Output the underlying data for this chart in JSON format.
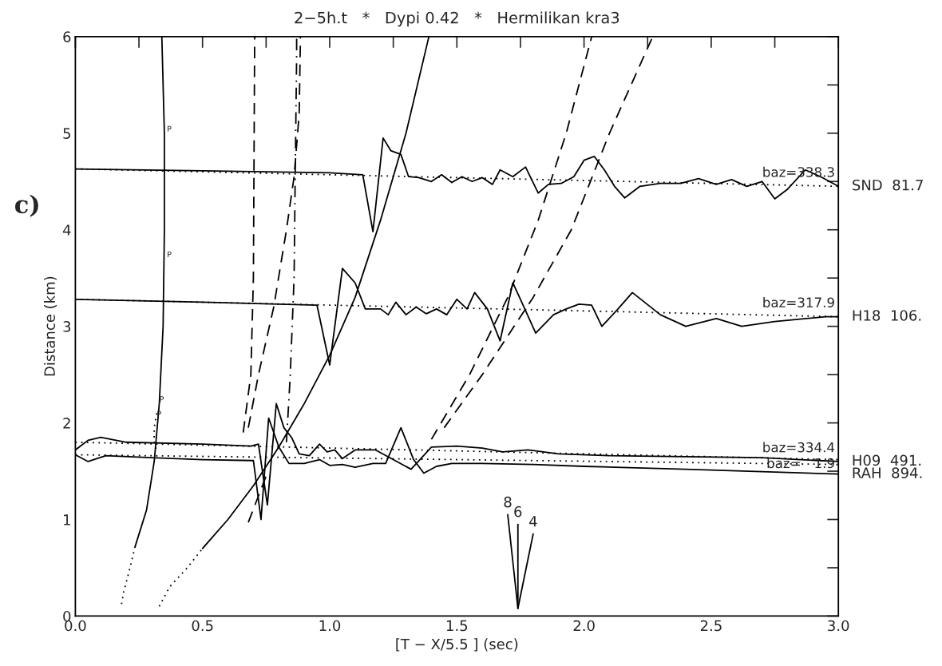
{
  "chart_data": {
    "type": "line",
    "title": "2−5h.t   *   Dypi 0.42   *   Hermilikan kra3",
    "xlabel": "[T − X/5.5 ] (sec)",
    "ylabel": "Distance (km)",
    "xlim": [
      0,
      3
    ],
    "ylim": [
      0,
      6
    ],
    "xticks": [
      {
        "value": 0,
        "label": "0.0"
      },
      {
        "value": 0.25,
        "label": null
      },
      {
        "value": 0.5,
        "label": "0.5"
      },
      {
        "value": 0.75,
        "label": null
      },
      {
        "value": 1,
        "label": "1.0"
      },
      {
        "value": 1.25,
        "label": null
      },
      {
        "value": 1.5,
        "label": "1.5"
      },
      {
        "value": 1.75,
        "label": null
      },
      {
        "value": 2,
        "label": "2.0"
      },
      {
        "value": 2.25,
        "label": null
      },
      {
        "value": 2.5,
        "label": "2.5"
      },
      {
        "value": 2.75,
        "label": null
      },
      {
        "value": 3,
        "label": "3.0"
      }
    ],
    "yticks": [
      0,
      {
        "value": 0.5,
        "label": null
      },
      1,
      {
        "value": 1.5,
        "label": null
      },
      2,
      {
        "value": 2.5,
        "label": null
      },
      3,
      {
        "value": 3.5,
        "label": null
      },
      4,
      {
        "value": 4.5,
        "label": null
      },
      5,
      {
        "value": 5.5,
        "label": null
      },
      6
    ],
    "grid": false,
    "legend": false,
    "marker": "none",
    "series": [
      {
        "name": "SND  81.7",
        "color": "#000000",
        "line_style": "solid",
        "x": [
          0,
          0.5,
          1.0,
          1.13,
          1.17,
          1.21,
          1.24,
          1.28,
          1.31,
          1.35,
          1.4,
          1.44,
          1.48,
          1.52,
          1.56,
          1.6,
          1.64,
          1.67,
          1.72,
          1.77,
          1.82,
          1.86,
          1.91,
          1.96,
          2.0,
          2.04,
          2.08,
          2.12,
          2.16,
          2.22,
          2.3,
          2.38,
          2.45,
          2.52,
          2.58,
          2.64,
          2.7,
          2.75,
          2.8,
          2.87,
          2.93,
          3.0
        ],
        "values": [
          4.63,
          4.61,
          4.59,
          4.57,
          3.98,
          4.95,
          4.82,
          4.78,
          4.55,
          4.54,
          4.5,
          4.57,
          4.49,
          4.55,
          4.5,
          4.54,
          4.47,
          4.62,
          4.55,
          4.65,
          4.38,
          4.47,
          4.48,
          4.55,
          4.72,
          4.76,
          4.62,
          4.45,
          4.33,
          4.45,
          4.48,
          4.48,
          4.53,
          4.47,
          4.52,
          4.45,
          4.5,
          4.32,
          4.42,
          4.62,
          4.55,
          4.45
        ]
      },
      {
        "name": "H18  106.",
        "color": "#000000",
        "line_style": "solid",
        "x": [
          0,
          0.5,
          0.95,
          1.0,
          1.05,
          1.1,
          1.14,
          1.2,
          1.23,
          1.26,
          1.3,
          1.34,
          1.38,
          1.42,
          1.46,
          1.5,
          1.54,
          1.57,
          1.62,
          1.67,
          1.72,
          1.75,
          1.81,
          1.88,
          1.93,
          1.98,
          2.03,
          2.07,
          2.13,
          2.19,
          2.3,
          2.4,
          2.52,
          2.62,
          2.75,
          2.95,
          3.0
        ],
        "values": [
          3.28,
          3.25,
          3.22,
          2.6,
          3.6,
          3.45,
          3.18,
          3.18,
          3.12,
          3.25,
          3.12,
          3.2,
          3.13,
          3.18,
          3.12,
          3.28,
          3.18,
          3.35,
          3.18,
          2.85,
          3.45,
          3.28,
          2.93,
          3.12,
          3.18,
          3.23,
          3.22,
          3.0,
          3.17,
          3.35,
          3.12,
          3.0,
          3.08,
          3.0,
          3.05,
          3.1,
          3.1
        ]
      },
      {
        "name": "H09  491.",
        "color": "#000000",
        "line_style": "solid",
        "x": [
          0,
          0.05,
          0.1,
          0.2,
          0.5,
          0.69,
          0.72,
          0.755,
          0.79,
          0.82,
          0.85,
          0.88,
          0.92,
          0.96,
          0.99,
          1.02,
          1.05,
          1.1,
          1.18,
          1.25,
          1.32,
          1.4,
          1.5,
          1.6,
          1.68,
          1.78,
          1.9,
          2.1,
          2.4,
          2.7,
          3.0
        ],
        "values": [
          1.72,
          1.82,
          1.85,
          1.8,
          1.78,
          1.76,
          1.78,
          1.15,
          2.2,
          1.95,
          1.85,
          1.68,
          1.66,
          1.78,
          1.7,
          1.72,
          1.63,
          1.72,
          1.72,
          1.62,
          1.52,
          1.75,
          1.76,
          1.74,
          1.7,
          1.72,
          1.68,
          1.66,
          1.65,
          1.64,
          1.6
        ]
      },
      {
        "name": "RAH  894.",
        "color": "#000000",
        "line_style": "solid",
        "x": [
          0,
          0.05,
          0.12,
          0.3,
          0.5,
          0.7,
          0.73,
          0.76,
          0.8,
          0.84,
          0.9,
          0.96,
          1.0,
          1.05,
          1.1,
          1.17,
          1.22,
          1.28,
          1.33,
          1.37,
          1.42,
          1.48,
          1.6,
          1.8,
          2.0,
          2.4,
          3.0
        ],
        "values": [
          1.67,
          1.6,
          1.66,
          1.64,
          1.62,
          1.61,
          1.0,
          2.05,
          1.75,
          1.58,
          1.58,
          1.62,
          1.56,
          1.57,
          1.54,
          1.58,
          1.58,
          1.95,
          1.62,
          1.48,
          1.55,
          1.58,
          1.58,
          1.57,
          1.55,
          1.52,
          1.47
        ]
      },
      {
        "color": "#000000",
        "line_style": "dotted",
        "x": [
          0,
          3
        ],
        "values": [
          4.63,
          4.45
        ]
      },
      {
        "color": "#000000",
        "line_style": "dotted",
        "x": [
          0,
          3
        ],
        "values": [
          3.28,
          3.1
        ]
      },
      {
        "color": "#000000",
        "line_style": "dotted",
        "x": [
          0,
          3
        ],
        "values": [
          1.8,
          1.62
        ]
      },
      {
        "color": "#000000",
        "line_style": "dotted",
        "x": [
          0,
          3
        ],
        "values": [
          1.67,
          1.57
        ]
      },
      {
        "color": "#000000",
        "line_style": "solid",
        "x": [
          0.34,
          0.35,
          0.35,
          0.345,
          0.33,
          0.31,
          0.28,
          0.235
        ],
        "values": [
          6,
          5,
          4,
          3,
          2.2,
          1.6,
          1.1,
          0.72
        ]
      },
      {
        "color": "#000000",
        "line_style": "dotted",
        "x": [
          0.235,
          0.21,
          0.19,
          0.18
        ],
        "values": [
          0.72,
          0.45,
          0.25,
          0.1
        ]
      },
      {
        "color": "#000000",
        "line_style": "dotted",
        "x": [
          0.32,
          0.31,
          0.31,
          0.32
        ],
        "values": [
          2.1,
          1.95,
          1.8,
          1.7
        ]
      },
      {
        "color": "#000000",
        "line_style": "solid",
        "x": [
          0.5,
          0.6,
          0.7,
          0.8,
          0.9,
          1.0,
          1.1,
          1.2,
          1.3,
          1.39
        ],
        "values": [
          0.7,
          1.0,
          1.35,
          1.75,
          2.2,
          2.7,
          3.3,
          4.1,
          5.0,
          6.0
        ]
      },
      {
        "color": "#000000",
        "line_style": "dotted",
        "x": [
          0.33,
          0.37,
          0.44,
          0.5
        ],
        "values": [
          0.1,
          0.3,
          0.5,
          0.7
        ]
      },
      {
        "color": "#000000",
        "line_style": "dashed",
        "x": [
          0.66,
          0.69,
          0.7,
          0.705
        ],
        "values": [
          1.9,
          2.5,
          3.5,
          6.0
        ]
      },
      {
        "color": "#000000",
        "line_style": "dashed",
        "x": [
          0.68,
          0.75
        ],
        "values": [
          0.97,
          1.45
        ]
      },
      {
        "color": "#000000",
        "line_style": "dashed",
        "x": [
          0.68,
          0.72,
          0.78,
          0.83,
          0.86,
          0.88,
          0.885
        ],
        "values": [
          1.95,
          2.5,
          3.2,
          4.0,
          4.55,
          5.2,
          6.0
        ]
      },
      {
        "color": "#000000",
        "line_style": "dashdot",
        "x": [
          0.83,
          0.845,
          0.86,
          0.865,
          0.87,
          0.87
        ],
        "values": [
          1.8,
          2.5,
          3.5,
          4.7,
          5.8,
          6.0
        ]
      },
      {
        "color": "#000000",
        "line_style": "dashed",
        "x": [
          1.4,
          1.55,
          1.7,
          1.82,
          1.93,
          2.03
        ],
        "values": [
          1.83,
          2.5,
          3.3,
          4.1,
          5.0,
          6.0
        ]
      },
      {
        "color": "#000000",
        "line_style": "dashed",
        "x": [
          1.45,
          1.6,
          1.8,
          1.95,
          2.1,
          2.27
        ],
        "values": [
          1.95,
          2.5,
          3.3,
          4.0,
          5.0,
          6.0
        ]
      },
      {
        "name": "8",
        "color": "#000000",
        "line_style": "solid",
        "x": [
          1.74,
          1.7
        ],
        "values": [
          0.08,
          1.05
        ]
      },
      {
        "name": "6",
        "color": "#000000",
        "line_style": "solid",
        "x": [
          1.74,
          1.74
        ],
        "values": [
          0.08,
          0.95
        ]
      },
      {
        "name": "4",
        "color": "#000000",
        "line_style": "solid",
        "x": [
          1.74,
          1.8
        ],
        "values": [
          0.08,
          0.85
        ]
      }
    ],
    "annotations": [
      "baz=338.3",
      "baz=317.9",
      "baz=334.4",
      "baz=   1.9",
      {
        "text": "P",
        "x": 0.36,
        "y": 5.0
      },
      {
        "text": "P",
        "x": 0.36,
        "y": 3.7
      },
      {
        "text": "P",
        "x": 0.33,
        "y": 2.2
      },
      {
        "text": "P",
        "x": 0.32,
        "y": 2.05
      },
      "c)"
    ]
  }
}
